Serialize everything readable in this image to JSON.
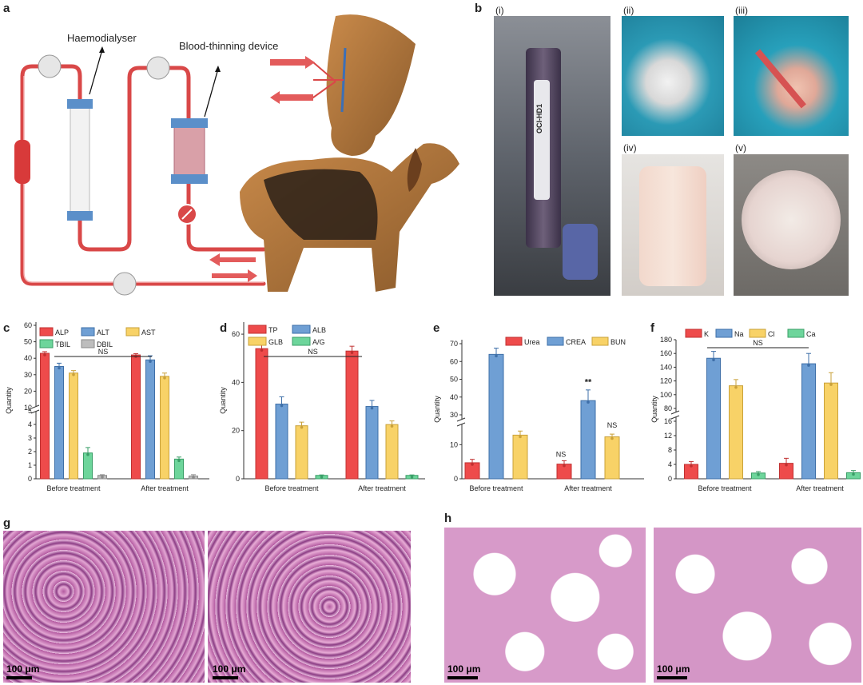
{
  "panel_letters": {
    "a": "a",
    "b": "b",
    "c": "c",
    "d": "d",
    "e": "e",
    "f": "f",
    "g": "g",
    "h": "h"
  },
  "schematic": {
    "haemodialyser_label": "Haemodialyser",
    "thinning_label": "Blood-thinning device"
  },
  "photos": {
    "sub_labels": [
      "(i)",
      "(ii)",
      "(iii)",
      "(iv)",
      "(v)"
    ],
    "device_text": "OCI-HD1"
  },
  "histology": {
    "scale_label": "100 μm"
  },
  "colors": {
    "red": "#ee4b4b",
    "blue": "#6f9fd4",
    "yellow": "#f8d267",
    "green": "#6dd59b",
    "grey": "#bdbdbd",
    "tubing": "#d94848"
  },
  "chart_data": [
    {
      "panel": "c",
      "type": "bar",
      "categories": [
        "Before treatment",
        "After treatment"
      ],
      "series": [
        {
          "name": "ALP",
          "values": [
            43,
            42
          ],
          "errors": [
            1,
            0.8
          ]
        },
        {
          "name": "ALT",
          "values": [
            35,
            39
          ],
          "errors": [
            2,
            2.5
          ]
        },
        {
          "name": "AST",
          "values": [
            31,
            29
          ],
          "errors": [
            1.5,
            2
          ]
        },
        {
          "name": "TBIL",
          "values": [
            1.9,
            1.45
          ],
          "errors": [
            0.4,
            0.15
          ]
        },
        {
          "name": "DBIL",
          "values": [
            0.25,
            0.2
          ],
          "errors": [
            0.05,
            0.1
          ]
        }
      ],
      "ylabel": "Quantity",
      "yticks_lower": [
        "0",
        "1",
        "2",
        "3",
        "4",
        "5"
      ],
      "yticks_upper": [
        "10",
        "20",
        "30",
        "40",
        "50",
        "60"
      ],
      "axis_break": true,
      "annotation": "NS"
    },
    {
      "panel": "d",
      "type": "bar",
      "categories": [
        "Before treatment",
        "After treatment"
      ],
      "series": [
        {
          "name": "TP",
          "values": [
            54,
            53
          ],
          "errors": [
            2,
            2
          ]
        },
        {
          "name": "ALB",
          "values": [
            31,
            30
          ],
          "errors": [
            3,
            2.5
          ]
        },
        {
          "name": "GLB",
          "values": [
            22,
            22.5
          ],
          "errors": [
            1.5,
            1.5
          ]
        },
        {
          "name": "A/G",
          "values": [
            1.4,
            1.4
          ],
          "errors": [
            0.2,
            0.2
          ]
        }
      ],
      "ylabel": "Quantity",
      "yticks": [
        "0",
        "20",
        "40",
        "60"
      ],
      "ylim": [
        0,
        65
      ],
      "annotation": "NS"
    },
    {
      "panel": "e",
      "type": "bar",
      "categories": [
        "Before treatment",
        "After treatment"
      ],
      "series": [
        {
          "name": "Urea",
          "values": [
            4.7,
            4.3
          ],
          "errors": [
            1,
            1
          ]
        },
        {
          "name": "CREA",
          "values": [
            64,
            38
          ],
          "errors": [
            3.5,
            6
          ]
        },
        {
          "name": "BUN",
          "values": [
            12.8,
            12.3
          ],
          "errors": [
            1.2,
            0.8
          ]
        }
      ],
      "ylabel": "Quantity",
      "yticks_lower": [
        "0",
        "10"
      ],
      "yticks_upper": [
        "30",
        "40",
        "50",
        "60",
        "70"
      ],
      "axis_break": true,
      "annotations": [
        "NS",
        "**",
        "NS"
      ]
    },
    {
      "panel": "f",
      "type": "bar",
      "categories": [
        "Before treatment",
        "After treatment"
      ],
      "series": [
        {
          "name": "K",
          "values": [
            4,
            4.3
          ],
          "errors": [
            0.8,
            1.4
          ]
        },
        {
          "name": "Na",
          "values": [
            153,
            145
          ],
          "errors": [
            10,
            15
          ]
        },
        {
          "name": "Cl",
          "values": [
            113,
            117
          ],
          "errors": [
            9,
            15
          ]
        },
        {
          "name": "Ca",
          "values": [
            1.6,
            1.7
          ],
          "errors": [
            0.4,
            0.6
          ]
        }
      ],
      "ylabel": "Quantity",
      "yticks_lower": [
        "0",
        "4",
        "8",
        "12",
        "16"
      ],
      "yticks_upper": [
        "80",
        "100",
        "120",
        "140",
        "160",
        "180"
      ],
      "axis_break": true,
      "annotation": "NS"
    }
  ]
}
